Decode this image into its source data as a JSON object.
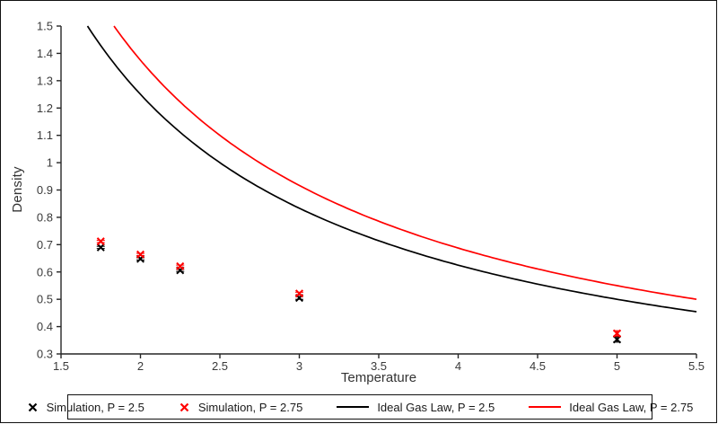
{
  "chart": {
    "background": "#FFFFFF",
    "frame_color": "#111111",
    "axis_color": "#262626",
    "tick_label_color": "#3a3a3a",
    "axis_title_color": "#333333",
    "legend_text_color": "#1a1a1a"
  },
  "chart_data": {
    "type": "scatter",
    "title": "",
    "xlabel": "Temperature",
    "ylabel": "Density",
    "xlim": [
      1.5,
      5.5
    ],
    "ylim": [
      0.3,
      1.5
    ],
    "xticks": [
      "1.5",
      "2",
      "2.5",
      "3",
      "3.5",
      "4",
      "4.5",
      "5",
      "5.5"
    ],
    "yticks": [
      "0.3",
      "0.4",
      "0.5",
      "0.6",
      "0.7",
      "0.8",
      "0.9",
      "1",
      "1.1",
      "1.2",
      "1.3",
      "1.4",
      "1.5"
    ],
    "grid": false,
    "legend_position": "bottom",
    "series": [
      {
        "name": "Simulation, P = 2.5",
        "type": "scatter",
        "marker": "x",
        "color": "#000000",
        "x": [
          1.75,
          2,
          2.25,
          3,
          5
        ],
        "y": [
          0.69,
          0.648,
          0.606,
          0.505,
          0.353
        ],
        "yerr": [
          0.004,
          0.004,
          0.004,
          0.005,
          0.01
        ]
      },
      {
        "name": "Simulation, P = 2.75",
        "type": "scatter",
        "marker": "x",
        "color": "#FF0000",
        "x": [
          1.75,
          2,
          2.25,
          3,
          5
        ],
        "y": [
          0.712,
          0.664,
          0.621,
          0.521,
          0.375
        ],
        "yerr": [
          0.004,
          0.004,
          0.004,
          0.005,
          0.01
        ]
      },
      {
        "name": "Ideal Gas Law, P = 2.5",
        "type": "line",
        "color": "#000000",
        "formula": "density = P / T",
        "pressure": 2.5
      },
      {
        "name": "Ideal Gas Law, P = 2.75",
        "type": "line",
        "color": "#FF0000",
        "formula": "density = P / T",
        "pressure": 2.75
      }
    ]
  }
}
